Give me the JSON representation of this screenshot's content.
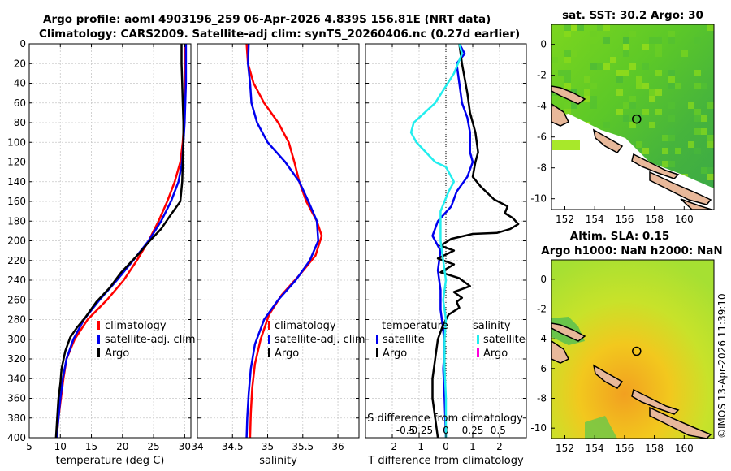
{
  "header": {
    "line1": "Argo profile: aoml 4903196_259 06-Apr-2026 4.839S 156.81E (NRT data)",
    "line2": "Climatology: CARS2009. Satellite-adj clim: synTS_20260406.nc (0.27d earlier)",
    "watermark": "©IMOS 13-Apr-2026 11:39:10"
  },
  "colors": {
    "climatology": "#ff0000",
    "satellite": "#0000ee",
    "argo": "#000000",
    "satellite_salinity": "#22eeee",
    "argo_salinity": "#ff00dd"
  },
  "chart_data": [
    {
      "type": "line",
      "title": "",
      "xlabel": "temperature (deg C)",
      "ylabel": "",
      "xlim": [
        5,
        31
      ],
      "ylim": [
        400,
        0
      ],
      "xticks": [
        5,
        10,
        15,
        20,
        25,
        30
      ],
      "yticks": [
        0,
        20,
        40,
        60,
        80,
        100,
        120,
        140,
        160,
        180,
        200,
        220,
        240,
        260,
        280,
        300,
        320,
        340,
        360,
        380,
        400
      ],
      "grid": true,
      "legend": [
        "climatology",
        "satellite-adj. clim",
        "Argo"
      ],
      "series": [
        {
          "name": "climatology",
          "color": "#ff0000",
          "points": [
            [
              30.0,
              0
            ],
            [
              30.0,
              20
            ],
            [
              30.0,
              40
            ],
            [
              30.0,
              60
            ],
            [
              29.9,
              80
            ],
            [
              29.7,
              100
            ],
            [
              29.3,
              120
            ],
            [
              28.4,
              140
            ],
            [
              27.2,
              160
            ],
            [
              25.8,
              180
            ],
            [
              24.2,
              200
            ],
            [
              22.3,
              220
            ],
            [
              20.2,
              240
            ],
            [
              17.5,
              260
            ],
            [
              14.4,
              280
            ],
            [
              12.3,
              300
            ],
            [
              11.0,
              320
            ],
            [
              10.5,
              340
            ],
            [
              10.1,
              360
            ],
            [
              9.7,
              380
            ],
            [
              9.4,
              400
            ]
          ]
        },
        {
          "name": "satellite-adj. clim",
          "color": "#0000ee",
          "points": [
            [
              30.2,
              0
            ],
            [
              30.2,
              20
            ],
            [
              30.2,
              40
            ],
            [
              30.1,
              60
            ],
            [
              30.0,
              80
            ],
            [
              29.8,
              100
            ],
            [
              29.6,
              120
            ],
            [
              29.0,
              140
            ],
            [
              27.8,
              160
            ],
            [
              26.2,
              180
            ],
            [
              24.2,
              200
            ],
            [
              21.7,
              220
            ],
            [
              19.1,
              240
            ],
            [
              16.3,
              260
            ],
            [
              13.8,
              280
            ],
            [
              12.1,
              300
            ],
            [
              11.0,
              320
            ],
            [
              10.4,
              340
            ],
            [
              10.0,
              360
            ],
            [
              9.7,
              380
            ],
            [
              9.4,
              400
            ]
          ]
        },
        {
          "name": "Argo",
          "color": "#000000",
          "points": [
            [
              29.5,
              0
            ],
            [
              29.5,
              20
            ],
            [
              29.6,
              40
            ],
            [
              29.7,
              60
            ],
            [
              29.8,
              80
            ],
            [
              29.8,
              100
            ],
            [
              29.7,
              120
            ],
            [
              29.6,
              140
            ],
            [
              29.3,
              160
            ],
            [
              27.6,
              175
            ],
            [
              26.2,
              188
            ],
            [
              24.4,
              200
            ],
            [
              22.8,
              212
            ],
            [
              19.8,
              232
            ],
            [
              17.9,
              248
            ],
            [
              15.8,
              262
            ],
            [
              14.0,
              278
            ],
            [
              12.7,
              288
            ],
            [
              11.6,
              298
            ],
            [
              10.8,
              312
            ],
            [
              10.2,
              330
            ],
            [
              10.0,
              345
            ],
            [
              9.7,
              360
            ],
            [
              9.5,
              380
            ],
            [
              9.3,
              400
            ]
          ]
        }
      ]
    },
    {
      "type": "line",
      "title": "",
      "xlabel": "salinity",
      "ylabel": "",
      "xlim": [
        34,
        36.3
      ],
      "ylim": [
        400,
        0
      ],
      "xticks": [
        34,
        34.5,
        35,
        35.5,
        36
      ],
      "xtick_labels": [
        "34",
        "34.5",
        "35",
        "35.5",
        "36"
      ],
      "grid": true,
      "legend": [
        "climatology",
        "satellite-adj. clim",
        "Argo"
      ],
      "series": [
        {
          "name": "climatology",
          "color": "#ff0000",
          "points": [
            [
              34.7,
              0
            ],
            [
              34.72,
              20
            ],
            [
              34.8,
              40
            ],
            [
              34.95,
              60
            ],
            [
              35.15,
              80
            ],
            [
              35.3,
              100
            ],
            [
              35.38,
              120
            ],
            [
              35.45,
              140
            ],
            [
              35.55,
              160
            ],
            [
              35.7,
              180
            ],
            [
              35.77,
              195
            ],
            [
              35.68,
              215
            ],
            [
              35.45,
              235
            ],
            [
              35.2,
              255
            ],
            [
              35.02,
              275
            ],
            [
              34.9,
              300
            ],
            [
              34.82,
              325
            ],
            [
              34.78,
              350
            ],
            [
              34.76,
              375
            ],
            [
              34.75,
              400
            ]
          ]
        },
        {
          "name": "satellite-adj. clim",
          "color": "#0000ee",
          "points": [
            [
              34.73,
              0
            ],
            [
              34.72,
              20
            ],
            [
              34.75,
              40
            ],
            [
              34.77,
              60
            ],
            [
              34.85,
              80
            ],
            [
              35.0,
              100
            ],
            [
              35.25,
              120
            ],
            [
              35.45,
              140
            ],
            [
              35.58,
              160
            ],
            [
              35.7,
              180
            ],
            [
              35.72,
              200
            ],
            [
              35.6,
              220
            ],
            [
              35.4,
              240
            ],
            [
              35.15,
              260
            ],
            [
              34.95,
              280
            ],
            [
              34.82,
              305
            ],
            [
              34.76,
              330
            ],
            [
              34.73,
              355
            ],
            [
              34.71,
              380
            ],
            [
              34.7,
              400
            ]
          ]
        },
        {
          "name": "Argo",
          "color": "#000000",
          "points": []
        }
      ]
    },
    {
      "type": "line",
      "title": "",
      "xlabel": "T difference from climatology",
      "ylabel": "",
      "xlim": [
        -3,
        3
      ],
      "ylim": [
        400,
        0
      ],
      "xticks": [
        -2,
        -1,
        0,
        1,
        2
      ],
      "xtick_labels": [
        "-2",
        "-1",
        "0",
        "1",
        "2"
      ],
      "secondary_xlabel": "S difference from climatology",
      "secondary_xtick_labels": [
        "-0.5",
        "-0.25",
        "0",
        "0.25",
        "0.5"
      ],
      "grid": true,
      "legend_groups": [
        {
          "title": "temperature",
          "entries": [
            "satellite",
            "Argo"
          ]
        },
        {
          "title": "salinity",
          "entries": [
            "satellite",
            "Argo"
          ]
        }
      ],
      "series": [
        {
          "name": "temperature satellite",
          "color": "#0000ee",
          "points": [
            [
              0.5,
              0
            ],
            [
              0.7,
              10
            ],
            [
              0.4,
              20
            ],
            [
              0.5,
              40
            ],
            [
              0.6,
              60
            ],
            [
              0.8,
              75
            ],
            [
              0.9,
              90
            ],
            [
              0.9,
              110
            ],
            [
              1.0,
              120
            ],
            [
              0.8,
              135
            ],
            [
              0.4,
              150
            ],
            [
              0.2,
              165
            ],
            [
              -0.3,
              180
            ],
            [
              -0.5,
              195
            ],
            [
              -0.2,
              210
            ],
            [
              -0.3,
              230
            ],
            [
              -0.2,
              250
            ],
            [
              -0.2,
              270
            ],
            [
              -0.1,
              290
            ],
            [
              -0.05,
              310
            ],
            [
              -0.1,
              330
            ],
            [
              -0.05,
              360
            ],
            [
              0.0,
              400
            ]
          ]
        },
        {
          "name": "temperature Argo",
          "color": "#000000",
          "points": [
            [
              0.5,
              0
            ],
            [
              0.6,
              20
            ],
            [
              0.8,
              50
            ],
            [
              0.9,
              70
            ],
            [
              1.1,
              90
            ],
            [
              1.2,
              110
            ],
            [
              1.1,
              120
            ],
            [
              1.0,
              135
            ],
            [
              1.3,
              145
            ],
            [
              1.8,
              158
            ],
            [
              2.3,
              165
            ],
            [
              2.2,
              172
            ],
            [
              2.5,
              177
            ],
            [
              2.7,
              183
            ],
            [
              2.4,
              188
            ],
            [
              1.9,
              192
            ],
            [
              1.0,
              193
            ],
            [
              0.2,
              198
            ],
            [
              -0.2,
              205
            ],
            [
              0.3,
              210
            ],
            [
              -0.3,
              218
            ],
            [
              0.3,
              224
            ],
            [
              -0.2,
              232
            ],
            [
              0.5,
              238
            ],
            [
              0.9,
              246
            ],
            [
              0.3,
              252
            ],
            [
              0.6,
              258
            ],
            [
              0.4,
              262
            ],
            [
              0.5,
              268
            ],
            [
              0.1,
              275
            ],
            [
              -0.1,
              285
            ],
            [
              -0.3,
              300
            ],
            [
              -0.4,
              320
            ],
            [
              -0.5,
              340
            ],
            [
              -0.5,
              360
            ],
            [
              -0.4,
              380
            ],
            [
              -0.3,
              400
            ]
          ]
        },
        {
          "name": "salinity satellite",
          "color": "#22eeee",
          "points": [
            [
              0.5,
              0
            ],
            [
              0.6,
              10
            ],
            [
              0.3,
              30
            ],
            [
              -0.4,
              60
            ],
            [
              -1.2,
              80
            ],
            [
              -1.3,
              90
            ],
            [
              -1.1,
              100
            ],
            [
              -0.4,
              120
            ],
            [
              0.0,
              125
            ],
            [
              0.2,
              135
            ],
            [
              0.3,
              140
            ],
            [
              0.1,
              150
            ],
            [
              -0.2,
              170
            ],
            [
              -0.2,
              200
            ],
            [
              -0.1,
              220
            ],
            [
              0.0,
              240
            ],
            [
              -0.1,
              260
            ],
            [
              0.0,
              280
            ],
            [
              -0.05,
              300
            ],
            [
              -0.05,
              330
            ],
            [
              0.0,
              360
            ],
            [
              0.0,
              400
            ]
          ]
        },
        {
          "name": "salinity Argo",
          "color": "#ff00dd",
          "points": []
        }
      ]
    }
  ],
  "maps": [
    {
      "title": "sat. SST: 30.2 Argo: 30",
      "lon_ticks": [
        "152",
        "154",
        "156",
        "158",
        "160"
      ],
      "lat_ticks": [
        "0",
        "-2",
        "-4",
        "-6",
        "-8",
        "-10"
      ],
      "marker_lon": 156.81,
      "marker_lat": -4.839
    },
    {
      "title_line1": "Altim. SLA: 0.15",
      "title_line2": "Argo h1000: NaN h2000: NaN",
      "lon_ticks": [
        "152",
        "154",
        "156",
        "158",
        "160"
      ],
      "lat_ticks": [
        "0",
        "-2",
        "-4",
        "-6",
        "-8",
        "-10"
      ],
      "marker_lon": 156.81,
      "marker_lat": -4.839
    }
  ]
}
